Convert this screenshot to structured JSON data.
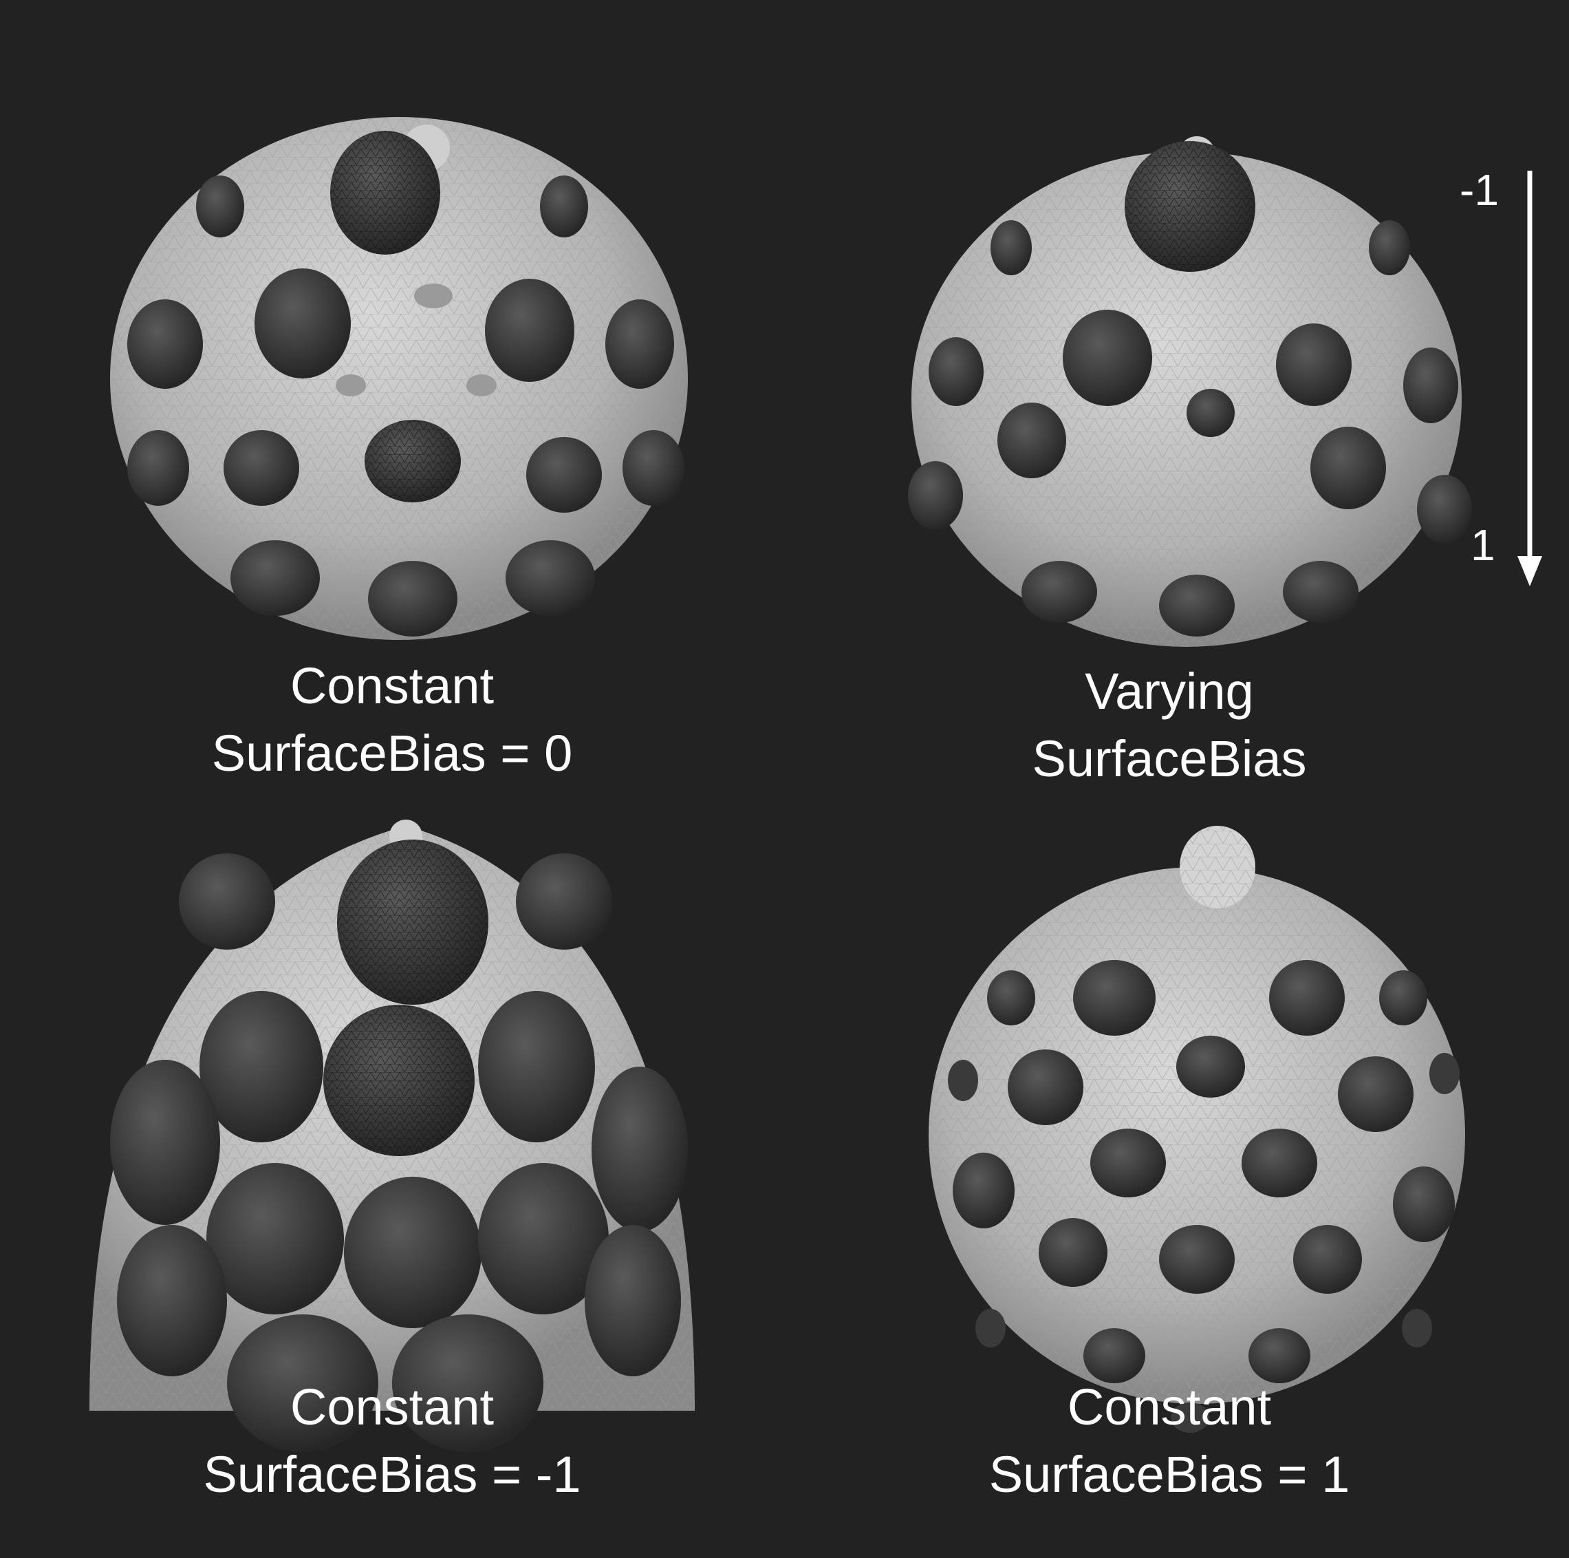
{
  "colors": {
    "background": "#222222",
    "lattice_light": "#bfbfbf",
    "lattice_dark": "#3a3a3a",
    "text": "#ffffff"
  },
  "panels": [
    {
      "id": "top-left",
      "caption_line1": "Constant",
      "caption_line2": "SurfaceBias = 0"
    },
    {
      "id": "top-right",
      "caption_line1": "Varying",
      "caption_line2": "SurfaceBias"
    },
    {
      "id": "bottom-left",
      "caption_line1": "Constant",
      "caption_line2": "SurfaceBias = -1"
    },
    {
      "id": "bottom-right",
      "caption_line1": "Constant",
      "caption_line2": "SurfaceBias = 1"
    }
  ],
  "scale_arrow": {
    "top_label": "-1",
    "bottom_label": "1"
  }
}
